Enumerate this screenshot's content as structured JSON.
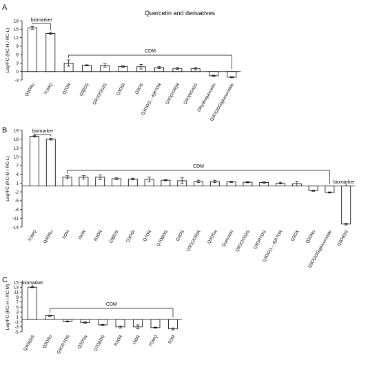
{
  "title": "Quercetin and derivatives",
  "chart_data": [
    {
      "type": "bar",
      "panel_label": "A",
      "ylabel": "Log²FC (RC-H / RC-L)",
      "ylim": [
        -3,
        18
      ],
      "yticks": [
        -3,
        0,
        3,
        6,
        9,
        12,
        15,
        18
      ],
      "categories": [
        "Q3ORu",
        "7OMQ",
        "Q7OR",
        "Q3βDS",
        "Q3O(2OG)G",
        "Q3OGl",
        "Q3OS",
        "Q3OG(1→4)R7OR",
        "Q3O(2OR)R",
        "Q3O(6OA)G",
        "Dihydroquercetin",
        "Q3O(2OG)glucuronide"
      ],
      "values": [
        15.5,
        13.5,
        3.0,
        2.2,
        2.2,
        1.8,
        1.7,
        1.4,
        1.1,
        1.0,
        -1.5,
        -2.0
      ],
      "errors": [
        0.5,
        0.3,
        1.1,
        0.2,
        0.6,
        0.3,
        0.8,
        0.4,
        0.3,
        0.4,
        0.2,
        0.2
      ],
      "groups": [
        {
          "label": "biomarker",
          "from": 0,
          "to": 1
        },
        {
          "label": "CDM",
          "from": 2,
          "to": 11
        }
      ]
    },
    {
      "type": "bar",
      "panel_label": "B",
      "ylabel": "Log²FC (RC-M / RC-L)",
      "ylim": [
        -14,
        19
      ],
      "yticks": [
        -14,
        -11,
        -8,
        -5,
        -2,
        1,
        4,
        7,
        10,
        13,
        16,
        19
      ],
      "categories": [
        "7OMQ",
        "Q3ORu",
        "5OM",
        "I3OR",
        "R3OR",
        "Q3βDS",
        "Q3OGl",
        "Q7OR",
        "Q7OβDG",
        "Q3OS",
        "Q3O(2OR)R",
        "Q3OGa",
        "Quercetin",
        "Q3O(2OG)G",
        "Q3OR7OG",
        "Q3OG(1→4)R7OR",
        "Q3OX",
        "Q3ORo",
        "Q3O(2OG)glucuronide",
        "Q3O(6)G"
      ],
      "values": [
        17.0,
        16.0,
        3.0,
        3.0,
        3.0,
        2.5,
        2.4,
        2.3,
        2.0,
        1.8,
        1.6,
        1.6,
        1.4,
        1.3,
        1.2,
        1.0,
        0.8,
        -1.6,
        -2.2,
        -13.0
      ],
      "errors": [
        0.3,
        0.3,
        0.5,
        0.6,
        0.8,
        0.3,
        0.3,
        0.8,
        0.2,
        1.0,
        0.4,
        0.4,
        0.2,
        0.2,
        0.2,
        0.3,
        0.8,
        0.2,
        0.2,
        0.3
      ],
      "groups": [
        {
          "label": "biomarker",
          "from": 0,
          "to": 1
        },
        {
          "label": "CDM",
          "from": 2,
          "to": 18
        },
        {
          "label": "biomarker",
          "from": 19,
          "to": 19
        }
      ]
    },
    {
      "type": "bar",
      "panel_label": "C",
      "ylabel": "Log²FC (RC-H / RC-M)",
      "ylim": [
        -5,
        15
      ],
      "yticks": [
        -5,
        -3,
        -1,
        1,
        3,
        5,
        7,
        9,
        11,
        13,
        15
      ],
      "categories": [
        "Q3O(6)G",
        "Q3ORo",
        "Q3OR7OG",
        "Q3OGa",
        "Q7OβDG",
        "R3OR",
        "I3OR",
        "7OMQ",
        "5OM"
      ],
      "values": [
        13.0,
        1.5,
        -0.8,
        -1.2,
        -2.2,
        -3.0,
        -3.0,
        -3.3,
        -3.8
      ],
      "errors": [
        0.2,
        0.2,
        0.2,
        0.3,
        0.2,
        0.4,
        0.8,
        0.2,
        0.4
      ],
      "groups": [
        {
          "label": "biomarker",
          "from": 0,
          "to": 0
        },
        {
          "label": "CDM",
          "from": 1,
          "to": 8
        }
      ]
    }
  ]
}
